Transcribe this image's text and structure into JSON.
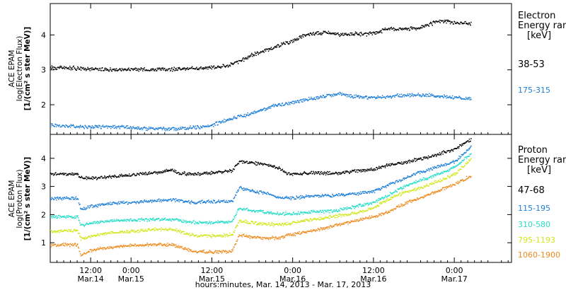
{
  "chart_data": [
    {
      "type": "scatter",
      "panel": "electron",
      "ylabel": [
        "ACE EPAM",
        "log(Electron Flux)",
        "[1/(cm² s ster MeV)]"
      ],
      "ylim": [
        1.15,
        4.9
      ],
      "yticks": [
        2,
        3,
        4
      ],
      "legend_title": [
        "Electron",
        "Energy ran",
        "[keV]"
      ],
      "series": [
        {
          "name": "38-53",
          "color": "#000000",
          "points": [
            [
              0,
              3.08
            ],
            [
              6,
              3.07
            ],
            [
              12,
              3.04
            ],
            [
              18,
              3.02
            ],
            [
              24,
              3.03
            ],
            [
              30,
              3.02
            ],
            [
              36,
              3.03
            ],
            [
              42,
              3.05
            ],
            [
              47,
              3.08
            ],
            [
              52,
              3.12
            ],
            [
              56,
              3.25
            ],
            [
              60,
              3.45
            ],
            [
              64,
              3.58
            ],
            [
              68,
              3.72
            ],
            [
              72,
              3.85
            ],
            [
              75,
              3.98
            ],
            [
              78,
              4.05
            ],
            [
              82,
              4.08
            ],
            [
              86,
              4.02
            ],
            [
              90,
              4.05
            ],
            [
              94,
              4.03
            ],
            [
              98,
              4.12
            ],
            [
              100,
              4.2
            ],
            [
              104,
              4.18
            ],
            [
              108,
              4.2
            ],
            [
              112,
              4.3
            ],
            [
              116,
              4.42
            ],
            [
              120,
              4.36
            ],
            [
              125,
              4.34
            ]
          ]
        },
        {
          "name": "175-315",
          "color": "#1e7fd8",
          "points": [
            [
              0,
              1.43
            ],
            [
              6,
              1.4
            ],
            [
              12,
              1.38
            ],
            [
              18,
              1.38
            ],
            [
              24,
              1.36
            ],
            [
              30,
              1.33
            ],
            [
              36,
              1.32
            ],
            [
              42,
              1.35
            ],
            [
              46,
              1.38
            ],
            [
              50,
              1.5
            ],
            [
              54,
              1.62
            ],
            [
              58,
              1.72
            ],
            [
              62,
              1.85
            ],
            [
              66,
              1.97
            ],
            [
              70,
              2.05
            ],
            [
              74,
              2.12
            ],
            [
              78,
              2.2
            ],
            [
              82,
              2.28
            ],
            [
              86,
              2.32
            ],
            [
              90,
              2.25
            ],
            [
              94,
              2.22
            ],
            [
              98,
              2.23
            ],
            [
              104,
              2.28
            ],
            [
              108,
              2.3
            ],
            [
              112,
              2.28
            ],
            [
              118,
              2.24
            ],
            [
              125,
              2.18
            ]
          ]
        }
      ]
    },
    {
      "type": "scatter",
      "panel": "proton",
      "ylabel": [
        "ACE EPAM",
        "log(Proton Flux)",
        "[1/(cm² s ster MeV)]"
      ],
      "ylim": [
        0.3,
        4.85
      ],
      "yticks": [
        1,
        2,
        3,
        4
      ],
      "legend_title": [
        "Proton",
        "Energy ran",
        "[keV]"
      ],
      "xlabel": "hours:minutes, Mar. 14, 2013 - Mar. 17, 2013",
      "xlim": [
        0,
        137
      ],
      "xticks": [
        {
          "x": 12,
          "time": "12:00",
          "date": "Mar.14"
        },
        {
          "x": 24,
          "time": "0:00",
          "date": "Mar.15"
        },
        {
          "x": 48,
          "time": "12:00",
          "date": "Mar.15"
        },
        {
          "x": 72,
          "time": "0:00",
          "date": "Mar.16"
        },
        {
          "x": 96,
          "time": "12:00",
          "date": "Mar.16"
        },
        {
          "x": 120,
          "time": "0:00",
          "date": "Mar.17"
        }
      ],
      "series": [
        {
          "name": "47-68",
          "color": "#000000",
          "points": [
            [
              0,
              3.45
            ],
            [
              8,
              3.45
            ],
            [
              9,
              3.32
            ],
            [
              14,
              3.32
            ],
            [
              20,
              3.38
            ],
            [
              26,
              3.45
            ],
            [
              32,
              3.52
            ],
            [
              36,
              3.62
            ],
            [
              38,
              3.5
            ],
            [
              42,
              3.45
            ],
            [
              48,
              3.5
            ],
            [
              54,
              3.58
            ],
            [
              56,
              3.9
            ],
            [
              60,
              3.85
            ],
            [
              64,
              3.8
            ],
            [
              68,
              3.65
            ],
            [
              70,
              3.5
            ],
            [
              72,
              3.45
            ],
            [
              78,
              3.5
            ],
            [
              84,
              3.48
            ],
            [
              90,
              3.55
            ],
            [
              96,
              3.62
            ],
            [
              100,
              3.78
            ],
            [
              104,
              3.85
            ],
            [
              108,
              3.95
            ],
            [
              112,
              4.05
            ],
            [
              116,
              4.2
            ],
            [
              120,
              4.35
            ],
            [
              125,
              4.7
            ]
          ]
        },
        {
          "name": "115-195",
          "color": "#1e7fd8",
          "points": [
            [
              0,
              2.6
            ],
            [
              8,
              2.6
            ],
            [
              9,
              2.2
            ],
            [
              12,
              2.3
            ],
            [
              18,
              2.42
            ],
            [
              24,
              2.45
            ],
            [
              30,
              2.5
            ],
            [
              36,
              2.55
            ],
            [
              42,
              2.45
            ],
            [
              48,
              2.48
            ],
            [
              54,
              2.48
            ],
            [
              56,
              2.98
            ],
            [
              60,
              2.85
            ],
            [
              64,
              2.78
            ],
            [
              68,
              2.62
            ],
            [
              72,
              2.6
            ],
            [
              78,
              2.68
            ],
            [
              84,
              2.7
            ],
            [
              90,
              2.75
            ],
            [
              96,
              2.85
            ],
            [
              100,
              3.05
            ],
            [
              104,
              3.25
            ],
            [
              108,
              3.45
            ],
            [
              112,
              3.6
            ],
            [
              116,
              3.75
            ],
            [
              120,
              3.9
            ],
            [
              125,
              4.42
            ]
          ]
        },
        {
          "name": "310-580",
          "color": "#26dcc8",
          "points": [
            [
              0,
              1.93
            ],
            [
              8,
              1.95
            ],
            [
              9,
              1.62
            ],
            [
              12,
              1.72
            ],
            [
              18,
              1.8
            ],
            [
              24,
              1.82
            ],
            [
              30,
              1.85
            ],
            [
              36,
              1.85
            ],
            [
              42,
              1.75
            ],
            [
              48,
              1.72
            ],
            [
              54,
              1.78
            ],
            [
              56,
              2.25
            ],
            [
              60,
              2.15
            ],
            [
              64,
              2.1
            ],
            [
              68,
              2.05
            ],
            [
              72,
              2.05
            ],
            [
              78,
              2.12
            ],
            [
              84,
              2.15
            ],
            [
              90,
              2.28
            ],
            [
              96,
              2.45
            ],
            [
              100,
              2.7
            ],
            [
              104,
              2.95
            ],
            [
              108,
              3.15
            ],
            [
              112,
              3.32
            ],
            [
              116,
              3.5
            ],
            [
              120,
              3.7
            ],
            [
              125,
              4.2
            ]
          ]
        },
        {
          "name": "795-1193",
          "color": "#d2e61e",
          "points": [
            [
              0,
              1.43
            ],
            [
              8,
              1.45
            ],
            [
              9,
              1.15
            ],
            [
              12,
              1.25
            ],
            [
              18,
              1.38
            ],
            [
              24,
              1.42
            ],
            [
              30,
              1.48
            ],
            [
              36,
              1.5
            ],
            [
              42,
              1.28
            ],
            [
              48,
              1.25
            ],
            [
              54,
              1.3
            ],
            [
              56,
              1.8
            ],
            [
              60,
              1.72
            ],
            [
              64,
              1.68
            ],
            [
              68,
              1.65
            ],
            [
              72,
              1.72
            ],
            [
              78,
              1.85
            ],
            [
              84,
              1.95
            ],
            [
              90,
              2.05
            ],
            [
              96,
              2.25
            ],
            [
              100,
              2.55
            ],
            [
              104,
              2.75
            ],
            [
              108,
              2.9
            ],
            [
              112,
              3.05
            ],
            [
              116,
              3.25
            ],
            [
              120,
              3.45
            ],
            [
              125,
              4.0
            ]
          ]
        },
        {
          "name": "1060-1900",
          "color": "#ee8a1c",
          "points": [
            [
              0,
              0.93
            ],
            [
              8,
              0.95
            ],
            [
              9,
              0.55
            ],
            [
              12,
              0.75
            ],
            [
              18,
              0.85
            ],
            [
              24,
              0.92
            ],
            [
              30,
              0.95
            ],
            [
              36,
              0.95
            ],
            [
              42,
              0.72
            ],
            [
              48,
              0.68
            ],
            [
              54,
              0.72
            ],
            [
              56,
              1.3
            ],
            [
              60,
              1.2
            ],
            [
              64,
              1.18
            ],
            [
              68,
              1.2
            ],
            [
              72,
              1.32
            ],
            [
              78,
              1.45
            ],
            [
              84,
              1.62
            ],
            [
              90,
              1.78
            ],
            [
              96,
              1.95
            ],
            [
              100,
              2.1
            ],
            [
              104,
              2.35
            ],
            [
              108,
              2.55
            ],
            [
              112,
              2.72
            ],
            [
              116,
              2.9
            ],
            [
              120,
              3.1
            ],
            [
              125,
              3.4
            ]
          ]
        }
      ]
    }
  ]
}
